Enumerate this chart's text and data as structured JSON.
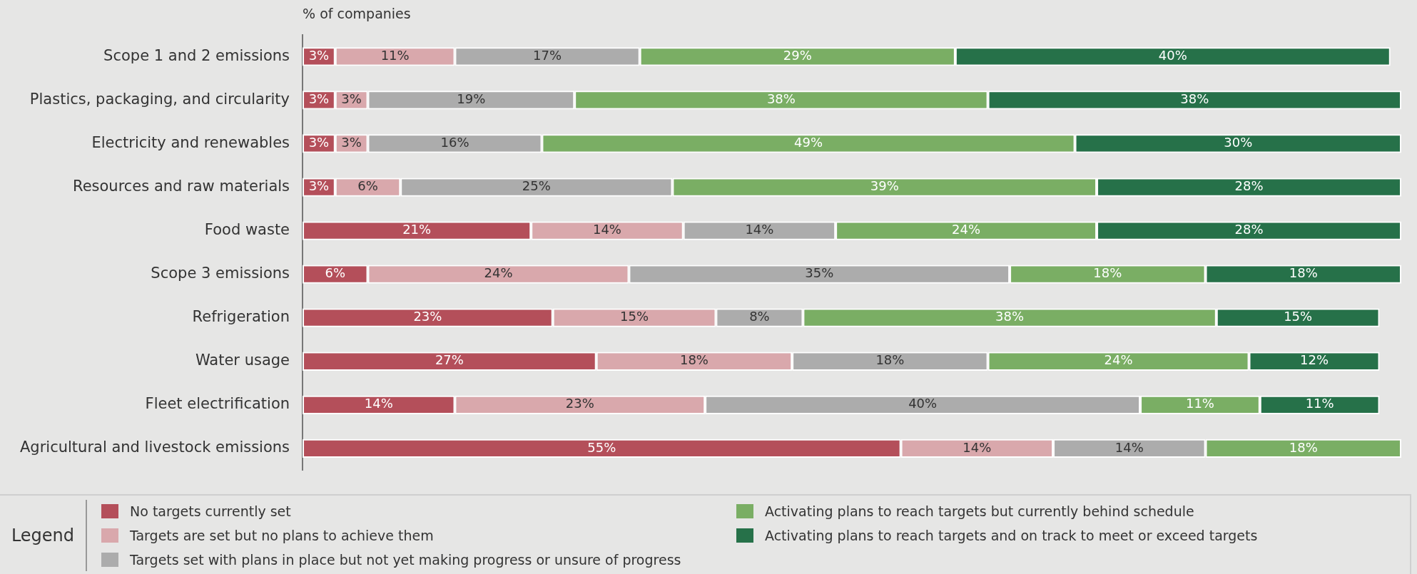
{
  "chart_data": {
    "type": "bar",
    "orientation": "horizontal",
    "stacked": true,
    "xlabel": "% of companies",
    "legend_title": "Legend",
    "legend": "bottom",
    "grid": false,
    "tick_labels": "y",
    "categories": [
      "Scope 1 and 2 emissions",
      "Plastics, packaging, and circularity",
      "Electricity and renewables",
      "Resources and raw materials",
      "Food waste",
      "Scope 3 emissions",
      "Refrigeration",
      "Water usage",
      "Fleet electrification",
      "Agricultural and livestock emissions"
    ],
    "series": [
      {
        "name": "No targets currently set",
        "color": "#b44f5a",
        "values": [
          3,
          3,
          3,
          3,
          21,
          6,
          23,
          27,
          14,
          55
        ],
        "value_labels": [
          "3%",
          "3%",
          "3%",
          "3%",
          "21%",
          "6%",
          "23%",
          "27%",
          "14%",
          "55%"
        ]
      },
      {
        "name": "Targets are set but no plans to achieve them",
        "color": "#d9a8ac",
        "values": [
          11,
          3,
          3,
          6,
          14,
          24,
          15,
          18,
          23,
          14
        ],
        "value_labels": [
          "11%",
          "3%",
          "3%",
          "6%",
          "14%",
          "24%",
          "15%",
          "18%",
          "23%",
          "14%"
        ]
      },
      {
        "name": "Targets set with plans in place but not yet making progress or unsure of progress",
        "color": "#acacac",
        "values": [
          17,
          19,
          16,
          25,
          14,
          35,
          8,
          18,
          40,
          14
        ],
        "value_labels": [
          "17%",
          "19%",
          "16%",
          "25%",
          "14%",
          "35%",
          "8%",
          "18%",
          "40%",
          "14%"
        ]
      },
      {
        "name": "Activating plans to reach targets but currently behind schedule",
        "color": "#7aae64",
        "values": [
          29,
          38,
          49,
          39,
          24,
          18,
          38,
          24,
          11,
          18
        ],
        "value_labels": [
          "29%",
          "38%",
          "49%",
          "39%",
          "24%",
          "18%",
          "38%",
          "24%",
          "11%",
          "18%"
        ]
      },
      {
        "name": "Activating plans to reach targets and on track to meet or exceed targets",
        "color": "#267149",
        "values": [
          40,
          38,
          30,
          28,
          28,
          18,
          15,
          12,
          11,
          null
        ],
        "value_labels": [
          "40%",
          "38%",
          "30%",
          "28%",
          "28%",
          "18%",
          "15%",
          "12%",
          "11%",
          null
        ]
      }
    ]
  }
}
